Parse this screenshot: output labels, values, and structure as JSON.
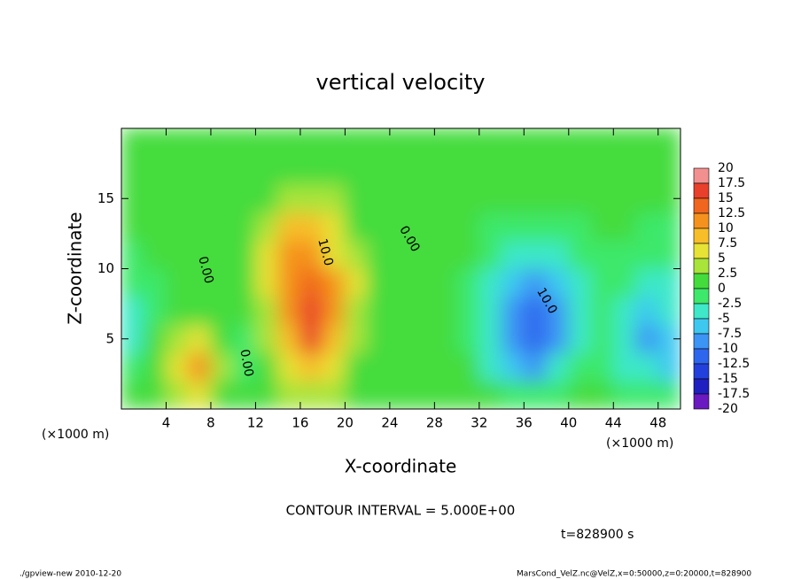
{
  "chart_data": {
    "type": "contour",
    "title": "vertical velocity",
    "xlabel": "X-coordinate",
    "ylabel": "Z-coordinate",
    "x_unit_left": "(×1000 m)",
    "x_unit_right": "(×1000 m)",
    "xlim": [
      0,
      50
    ],
    "ylim": [
      0,
      20
    ],
    "xticks": [
      4,
      8,
      12,
      16,
      20,
      24,
      28,
      32,
      36,
      40,
      44,
      48
    ],
    "yticks": [
      5,
      10,
      15
    ],
    "x": [
      1,
      3,
      5,
      7,
      9,
      11,
      13,
      15,
      17,
      19,
      21,
      23,
      25,
      27,
      29,
      31,
      33,
      35,
      37,
      39,
      41,
      43,
      45,
      47,
      49
    ],
    "z": [
      1,
      3,
      5,
      7,
      9,
      11,
      13,
      15,
      17,
      19
    ],
    "values": [
      [
        0,
        1,
        3,
        5,
        2,
        0,
        1,
        3,
        4,
        3,
        1,
        0,
        0,
        0,
        0,
        0,
        0,
        -1,
        -2,
        -1,
        0,
        0,
        -2,
        -2,
        -2
      ],
      [
        -2,
        1,
        6,
        10,
        3,
        -2,
        2,
        6,
        9,
        6,
        2,
        0,
        0,
        0,
        0,
        0,
        -3,
        -7,
        -9,
        -5,
        -1,
        -1,
        -3,
        -5,
        -6
      ],
      [
        -3,
        0,
        4,
        6,
        2,
        -2,
        3,
        9,
        15,
        9,
        4,
        1,
        0,
        0,
        0,
        -1,
        -4,
        -9,
        -12,
        -8,
        -3,
        -2,
        -4,
        -8,
        -7
      ],
      [
        -3,
        -1,
        1,
        2,
        1,
        0,
        4,
        11,
        17,
        11,
        4,
        1,
        0,
        0,
        0,
        -1,
        -4,
        -8,
        -11,
        -8,
        -3,
        -2,
        -3,
        -6,
        -5
      ],
      [
        -2,
        -1,
        0,
        0,
        1,
        1,
        5,
        12,
        14,
        10,
        5,
        1,
        0,
        0,
        0,
        -1,
        -3,
        -7,
        -8,
        -6,
        -3,
        -1,
        -2,
        -4,
        -3
      ],
      [
        -1,
        0,
        0,
        0,
        1,
        1,
        5,
        11,
        12,
        7,
        4,
        1,
        0,
        0,
        0,
        0,
        -2,
        -3,
        -4,
        -3,
        -2,
        -1,
        -1,
        -2,
        -2
      ],
      [
        0,
        0,
        0,
        0,
        0,
        1,
        4,
        8,
        8,
        5,
        2,
        1,
        0,
        0,
        0,
        0,
        -1,
        -1,
        -1,
        -1,
        -1,
        0,
        0,
        -1,
        -1
      ],
      [
        0,
        0,
        0,
        0,
        0,
        1,
        2,
        4,
        4,
        3,
        1,
        0,
        0,
        0,
        0,
        0,
        0,
        0,
        0,
        0,
        0,
        0,
        0,
        0,
        0
      ],
      [
        0,
        0,
        0,
        0,
        0,
        0,
        1,
        1,
        1,
        1,
        0,
        0,
        0,
        0,
        0,
        0,
        0,
        0,
        0,
        0,
        0,
        0,
        0,
        0,
        0
      ],
      [
        0,
        0,
        0,
        0,
        0,
        0,
        0,
        0,
        0,
        0,
        0,
        0,
        0,
        0,
        0,
        0,
        0,
        0,
        0,
        0,
        0,
        0,
        0,
        0,
        0
      ]
    ],
    "levels": [
      20,
      17.5,
      15,
      12.5,
      10,
      7.5,
      5,
      2.5,
      0,
      -2.5,
      -5,
      -7.5,
      -10,
      -12.5,
      -15,
      -17.5,
      -20
    ],
    "level_colors": [
      "#f29090",
      "#e8402a",
      "#f0661e",
      "#f5921e",
      "#f7be2a",
      "#e6e236",
      "#a8e43a",
      "#44dc3c",
      "#3ee86a",
      "#3ee8c8",
      "#3ec8f0",
      "#3c94f5",
      "#2e66ee",
      "#2440dc",
      "#2020c0",
      "#6a1ac0"
    ],
    "annotations": [
      "0.00",
      "0.00",
      "10.0",
      "0.00",
      "10.0"
    ],
    "contour_interval": "CONTOUR INTERVAL = 5.000E+00",
    "time_label": "t=828900 s",
    "footer_left": "./gpview-new  2010-12-20",
    "footer_right": "MarsCond_VelZ.nc@VelZ,x=0:50000,z=0:20000,t=828900"
  }
}
